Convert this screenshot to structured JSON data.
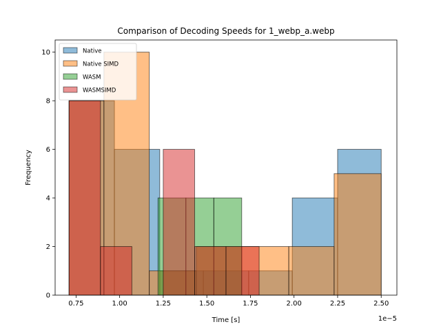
{
  "chart_data": {
    "type": "bar",
    "subtype": "overlapping-histogram",
    "title": "Comparison of Decoding Speeds for 1_webp_a.webp",
    "xlabel": "Time [s]",
    "ylabel": "Frequency",
    "x_offset_label": "1e−5",
    "xlim": [
      0.63,
      2.59
    ],
    "ylim": [
      0,
      10.5
    ],
    "x_ticks": [
      0.75,
      1.0,
      1.25,
      1.5,
      1.75,
      2.0,
      2.25,
      2.5
    ],
    "x_tick_labels": [
      "0.75",
      "1.00",
      "1.25",
      "1.50",
      "1.75",
      "2.00",
      "2.25",
      "2.50"
    ],
    "y_ticks": [
      0,
      2,
      4,
      6,
      8,
      10
    ],
    "y_tick_labels": [
      "0",
      "2",
      "4",
      "6",
      "8",
      "10"
    ],
    "grid": false,
    "legend_position": "top-left",
    "series": [
      {
        "name": "Native",
        "color": "#1f77b4",
        "bins": [
          {
            "x0": 0.71,
            "x1": 0.97,
            "count": 8
          },
          {
            "x0": 0.97,
            "x1": 1.23,
            "count": 6
          },
          {
            "x0": 1.23,
            "x1": 1.48,
            "count": 1
          },
          {
            "x0": 1.48,
            "x1": 1.74,
            "count": 1
          },
          {
            "x0": 1.74,
            "x1": 1.99,
            "count": 1
          },
          {
            "x0": 1.99,
            "x1": 2.25,
            "count": 4
          },
          {
            "x0": 2.25,
            "x1": 2.5,
            "count": 6
          }
        ]
      },
      {
        "name": "Native SIMD",
        "color": "#ff7f0e",
        "bins": [
          {
            "x0": 0.71,
            "x1": 0.91,
            "count": 8
          },
          {
            "x0": 0.91,
            "x1": 1.17,
            "count": 10
          },
          {
            "x0": 1.17,
            "x1": 1.44,
            "count": 1
          },
          {
            "x0": 1.44,
            "x1": 1.7,
            "count": 2
          },
          {
            "x0": 1.7,
            "x1": 1.97,
            "count": 2
          },
          {
            "x0": 1.97,
            "x1": 2.23,
            "count": 2
          },
          {
            "x0": 2.23,
            "x1": 2.5,
            "count": 5
          }
        ]
      },
      {
        "name": "WASM",
        "color": "#2ca02c",
        "bins": [
          {
            "x0": 1.22,
            "x1": 1.38,
            "count": 4
          },
          {
            "x0": 1.38,
            "x1": 1.54,
            "count": 4
          },
          {
            "x0": 1.54,
            "x1": 1.7,
            "count": 4
          }
        ]
      },
      {
        "name": "WASMSIMD",
        "color": "#d62728",
        "bins": [
          {
            "x0": 0.71,
            "x1": 0.89,
            "count": 8
          },
          {
            "x0": 0.89,
            "x1": 1.07,
            "count": 2
          },
          {
            "x0": 1.07,
            "x1": 1.25,
            "count": 0
          },
          {
            "x0": 1.25,
            "x1": 1.43,
            "count": 6
          },
          {
            "x0": 1.43,
            "x1": 1.61,
            "count": 2
          },
          {
            "x0": 1.61,
            "x1": 1.8,
            "count": 2
          }
        ]
      }
    ]
  }
}
